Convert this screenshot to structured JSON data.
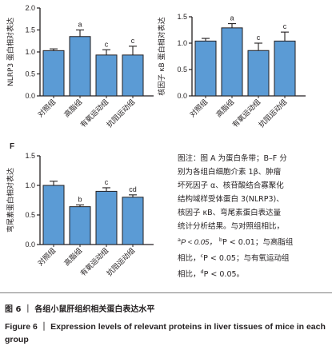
{
  "chart_data": [
    {
      "type": "bar",
      "panel_label": "",
      "ylabel": "NLRP3 蛋白相对表达",
      "categories": [
        "对照组",
        "高脂组",
        "有氧运动组",
        "抗阻运动组"
      ],
      "values": [
        1.03,
        1.35,
        0.93,
        0.93
      ],
      "errors": [
        0.04,
        0.15,
        0.12,
        0.2
      ],
      "significance": [
        "",
        "a",
        "c",
        "c"
      ],
      "ylim": [
        0,
        2.0
      ],
      "yticks": [
        "0.0",
        "0.5",
        "1.0",
        "1.5",
        "2.0"
      ],
      "ytick_values": [
        0,
        0.5,
        1.0,
        1.5,
        2.0
      ]
    },
    {
      "type": "bar",
      "panel_label": "",
      "ylabel": "核因子 κB 蛋白相对表达",
      "categories": [
        "对照组",
        "高脂组",
        "有氧运动组",
        "抗阻运动组"
      ],
      "values": [
        1.04,
        1.29,
        0.86,
        1.04
      ],
      "errors": [
        0.05,
        0.08,
        0.14,
        0.17
      ],
      "significance": [
        "",
        "a",
        "c",
        "c"
      ],
      "ylim": [
        0,
        1.5
      ],
      "yticks": [
        "0.0",
        "0.5",
        "1.0",
        "1.5"
      ],
      "ytick_values": [
        0,
        0.5,
        1.0,
        1.5
      ]
    },
    {
      "type": "bar",
      "panel_label": "F",
      "ylabel": "弯尾素蛋白相对表达",
      "categories": [
        "对照组",
        "高脂组",
        "有氧运动组",
        "抗阻运动组"
      ],
      "values": [
        1.0,
        0.64,
        0.9,
        0.8
      ],
      "errors": [
        0.07,
        0.03,
        0.06,
        0.04
      ],
      "significance": [
        "",
        "b",
        "c",
        "cd"
      ],
      "ylim": [
        0,
        1.5
      ],
      "yticks": [
        "0.0",
        "0.5",
        "1.0",
        "1.5"
      ],
      "ytick_values": [
        0,
        0.5,
        1.0,
        1.5
      ]
    }
  ],
  "note": {
    "line1": "图注：图 A 为蛋白条带；B–F 分",
    "line2": "别为各组白细胞介素 1β、肿瘤",
    "line3": "坏死因子 α、核苷酸结合寡聚化",
    "line4": "结构域样受体蛋白 3(NLRP3)、",
    "line5": "核因子 κB、弯尾素蛋白表达量",
    "line6": "统计分析结果。与对照组相比，",
    "line7_a": "a",
    "line7_b": "P < 0.05，",
    "line7_c": "b",
    "line7_d": "P < 0.01；与高脂组",
    "line8_a": "相比，",
    "line8_b": "c",
    "line8_c": "P < 0.05；与有氧运动组",
    "line9_a": "相比，",
    "line9_b": "d",
    "line9_c": "P < 0.05。"
  },
  "caption_cn": "图 6 ｜ 各组小鼠肝组织相关蛋白表达水平",
  "caption_en": "Figure 6 ｜ Expression levels of relevant proteins in liver tissues of mice in each group"
}
